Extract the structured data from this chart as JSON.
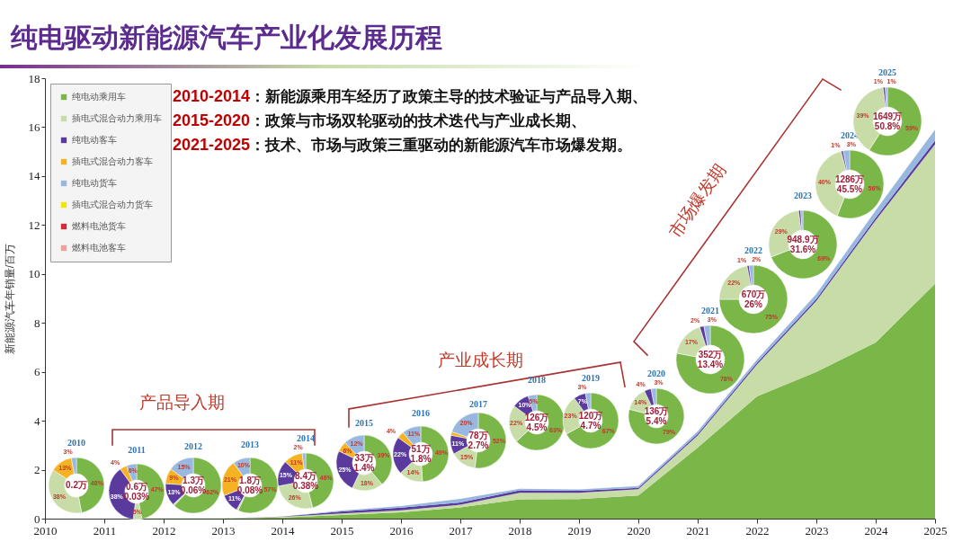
{
  "chart_data": [
    {
      "type": "area",
      "title": "纯电驱动新能源汽车产业化发展历程",
      "ylabel": "新能源汽车年销量/百万",
      "stacked": true,
      "legend": "top left",
      "grid": false,
      "x": [
        2010,
        2011,
        2012,
        2013,
        2014,
        2015,
        2016,
        2017,
        2018,
        2019,
        2020,
        2021,
        2022,
        2023,
        2024,
        2025
      ],
      "xlim": [
        2010,
        2025
      ],
      "xticks": [
        2010,
        2011,
        2012,
        2013,
        2014,
        2015,
        2016,
        2017,
        2018,
        2019,
        2020,
        2021,
        2022,
        2023,
        2024,
        2025
      ],
      "ylim": [
        0,
        18
      ],
      "yticks": [
        0,
        2,
        4,
        6,
        8,
        10,
        12,
        14,
        16,
        18
      ],
      "series": [
        {
          "name": "纯电动乘用车",
          "color": "#7ab648",
          "values": [
            0,
            0,
            0.01,
            0.01,
            0.05,
            0.15,
            0.26,
            0.46,
            0.79,
            0.8,
            0.95,
            2.9,
            5.0,
            6.0,
            7.2,
            9.6
          ]
        },
        {
          "name": "插电式混合动力乘用车",
          "color": "#c8dca8",
          "values": [
            0,
            0,
            0,
            0,
            0.02,
            0.06,
            0.08,
            0.11,
            0.27,
            0.26,
            0.25,
            0.5,
            1.3,
            2.9,
            5.0,
            5.7
          ]
        },
        {
          "name": "纯电动客车",
          "color": "#5b3a9e",
          "values": [
            0,
            0,
            0,
            0,
            0.01,
            0.08,
            0.11,
            0.09,
            0.1,
            0.08,
            0.06,
            0.06,
            0.07,
            0.08,
            0.1,
            0.15
          ]
        },
        {
          "name": "插电式混合动力客车",
          "color": "#f5b324",
          "values": [
            null,
            null,
            null,
            null,
            null,
            null,
            null,
            null,
            null,
            null,
            null,
            null,
            null,
            null,
            null,
            null
          ]
        },
        {
          "name": "纯电动货车",
          "color": "#98b8e0",
          "values": [
            0,
            0,
            0,
            0,
            0,
            0.04,
            0.06,
            0.15,
            0.06,
            0.05,
            0.07,
            0.11,
            0.13,
            0.2,
            0.3,
            0.45
          ]
        },
        {
          "name": "插电式混合动力货车",
          "color": "#f2e600",
          "values": [
            null,
            null,
            null,
            null,
            null,
            null,
            null,
            null,
            null,
            null,
            null,
            null,
            null,
            null,
            null,
            null
          ]
        },
        {
          "name": "燃料电池货车",
          "color": "#d42a3a",
          "values": [
            null,
            null,
            null,
            null,
            null,
            null,
            null,
            null,
            null,
            null,
            null,
            null,
            null,
            null,
            null,
            null
          ]
        },
        {
          "name": "燃料电池客车",
          "color": "#f0a0a0",
          "values": [
            null,
            null,
            null,
            null,
            null,
            null,
            null,
            null,
            null,
            null,
            null,
            null,
            null,
            null,
            null,
            null
          ]
        }
      ],
      "annotations": [
        "2010-2014：新能源乘用车经历了政策主导的技术验证与产品导入期、",
        "2015-2020：政策与市场双轮驱动的技术迭代与产业成长期、",
        "2021-2025：技术、市场与政策三重驱动的新能源汽车市场爆发期。",
        "产品导入期",
        "产业成长期",
        "市场爆发期"
      ]
    },
    {
      "type": "donut",
      "title": "2010",
      "categories": [
        null,
        null,
        null,
        null
      ],
      "values": [
        48,
        38,
        13,
        3
      ],
      "colors": [
        "#7ab648",
        "#c8dca8",
        "#f5b324",
        "#98b8e0"
      ],
      "value_labels": [
        "48%",
        "38%",
        "13%",
        "3%"
      ],
      "annotations": [
        "0.2万"
      ]
    },
    {
      "type": "donut",
      "title": "2011",
      "categories": [
        null,
        null,
        null,
        null,
        null
      ],
      "values": [
        47,
        5,
        38,
        4,
        6
      ],
      "colors": [
        "#7ab648",
        "#c8dca8",
        "#5b3a9e",
        "#f5b324",
        "#98b8e0"
      ],
      "value_labels": [
        "47%",
        "5%",
        "38%",
        "4%",
        "6%"
      ],
      "annotations": [
        "0.6万",
        "0.03%"
      ]
    },
    {
      "type": "donut",
      "title": "2012",
      "categories": [
        null,
        null,
        null,
        null,
        null
      ],
      "values": [
        62,
        1,
        13,
        9,
        15
      ],
      "colors": [
        "#7ab648",
        "#c8dca8",
        "#5b3a9e",
        "#f5b324",
        "#98b8e0"
      ],
      "value_labels": [
        "62%",
        null,
        "13%",
        "9%",
        "15%"
      ],
      "annotations": [
        "1.3万",
        "0.06%"
      ]
    },
    {
      "type": "donut",
      "title": "2013",
      "categories": [
        null,
        null,
        null,
        null,
        null
      ],
      "values": [
        57,
        1,
        11,
        21,
        10
      ],
      "colors": [
        "#7ab648",
        "#c8dca8",
        "#5b3a9e",
        "#f5b324",
        "#98b8e0"
      ],
      "value_labels": [
        "57%",
        null,
        "11%",
        "21%",
        "10%"
      ],
      "annotations": [
        "1.8万",
        "0.08%"
      ]
    },
    {
      "type": "donut",
      "title": "2014",
      "categories": [
        null,
        null,
        null,
        null,
        null
      ],
      "values": [
        46,
        26,
        15,
        11,
        2
      ],
      "colors": [
        "#7ab648",
        "#c8dca8",
        "#5b3a9e",
        "#f5b324",
        "#98b8e0"
      ],
      "value_labels": [
        "46%",
        "26%",
        "15%",
        "11%",
        "2%"
      ],
      "annotations": [
        "8.4万",
        "0.38%"
      ]
    },
    {
      "type": "donut",
      "title": "2015",
      "categories": [
        null,
        null,
        null,
        null,
        null
      ],
      "values": [
        39,
        18,
        25,
        6,
        12
      ],
      "colors": [
        "#7ab648",
        "#c8dca8",
        "#5b3a9e",
        "#f5b324",
        "#98b8e0"
      ],
      "value_labels": [
        "39%",
        "18%",
        "25%",
        "6%",
        "12%"
      ],
      "annotations": [
        "33万",
        "1.4%"
      ]
    },
    {
      "type": "donut",
      "title": "2016",
      "categories": [
        null,
        null,
        null,
        null,
        null
      ],
      "values": [
        49,
        14,
        22,
        4,
        11
      ],
      "colors": [
        "#7ab648",
        "#c8dca8",
        "#5b3a9e",
        "#f5b324",
        "#98b8e0"
      ],
      "value_labels": [
        "49%",
        "14%",
        "22%",
        "4%",
        "11%"
      ],
      "annotations": [
        "51万",
        "1.8%"
      ]
    },
    {
      "type": "donut",
      "title": "2017",
      "categories": [
        null,
        null,
        null,
        null,
        null
      ],
      "values": [
        52,
        15,
        11,
        2,
        20
      ],
      "colors": [
        "#7ab648",
        "#c8dca8",
        "#5b3a9e",
        "#f5b324",
        "#98b8e0"
      ],
      "value_labels": [
        "52%",
        "15%",
        "11%",
        null,
        "20%"
      ],
      "annotations": [
        "78万",
        "2.7%"
      ]
    },
    {
      "type": "donut",
      "title": "2018",
      "categories": [
        null,
        null,
        null,
        null
      ],
      "values": [
        63,
        22,
        10,
        5
      ],
      "colors": [
        "#7ab648",
        "#c8dca8",
        "#5b3a9e",
        "#98b8e0"
      ],
      "value_labels": [
        "63%",
        "22%",
        "10%",
        "5%"
      ],
      "annotations": [
        "126万",
        "4.5%"
      ]
    },
    {
      "type": "donut",
      "title": "2019",
      "categories": [
        null,
        null,
        null,
        null
      ],
      "values": [
        67,
        23,
        7,
        3
      ],
      "colors": [
        "#7ab648",
        "#c8dca8",
        "#5b3a9e",
        "#98b8e0"
      ],
      "value_labels": [
        "67%",
        "23%",
        "7%",
        "3%"
      ],
      "annotations": [
        "120万",
        "4.7%"
      ]
    },
    {
      "type": "donut",
      "title": "2020",
      "categories": [
        null,
        null,
        null,
        null
      ],
      "values": [
        79,
        14,
        4,
        3
      ],
      "colors": [
        "#7ab648",
        "#c8dca8",
        "#5b3a9e",
        "#98b8e0"
      ],
      "value_labels": [
        "79%",
        "14%",
        "4%",
        "3%"
      ],
      "annotations": [
        "136万",
        "5.4%"
      ]
    },
    {
      "type": "donut",
      "title": "2021",
      "categories": [
        null,
        null,
        null,
        null
      ],
      "values": [
        78,
        17,
        2,
        3
      ],
      "colors": [
        "#7ab648",
        "#c8dca8",
        "#5b3a9e",
        "#98b8e0"
      ],
      "value_labels": [
        "78%",
        "17%",
        "2%",
        "3%"
      ],
      "annotations": [
        "352万",
        "13.4%"
      ]
    },
    {
      "type": "donut",
      "title": "2022",
      "categories": [
        null,
        null,
        null,
        null
      ],
      "values": [
        75,
        22,
        1,
        2
      ],
      "colors": [
        "#7ab648",
        "#c8dca8",
        "#5b3a9e",
        "#98b8e0"
      ],
      "value_labels": [
        "75%",
        "22%",
        "1%",
        "2%"
      ],
      "annotations": [
        "670万",
        "26%"
      ]
    },
    {
      "type": "donut",
      "title": "2023",
      "categories": [
        null,
        null,
        null,
        null
      ],
      "values": [
        69,
        29,
        1,
        1
      ],
      "colors": [
        "#7ab648",
        "#c8dca8",
        "#5b3a9e",
        "#98b8e0"
      ],
      "value_labels": [
        "69%",
        "29%",
        null,
        null
      ],
      "annotations": [
        "948.9万",
        "31.6%"
      ]
    },
    {
      "type": "donut",
      "title": "2024",
      "categories": [
        null,
        null,
        null,
        null
      ],
      "values": [
        56,
        40,
        1,
        3
      ],
      "colors": [
        "#7ab648",
        "#c8dca8",
        "#5b3a9e",
        "#98b8e0"
      ],
      "value_labels": [
        "56%",
        "40%",
        "1%",
        "3%"
      ],
      "annotations": [
        "1286万",
        "45.5%"
      ]
    },
    {
      "type": "donut",
      "title": "2025",
      "categories": [
        null,
        null,
        null,
        null
      ],
      "values": [
        59,
        39,
        1,
        1
      ],
      "colors": [
        "#7ab648",
        "#c8dca8",
        "#5b3a9e",
        "#98b8e0"
      ],
      "value_labels": [
        "59%",
        "39%",
        "1%",
        "1%"
      ],
      "annotations": [
        "1649万",
        "50.8%"
      ]
    }
  ]
}
